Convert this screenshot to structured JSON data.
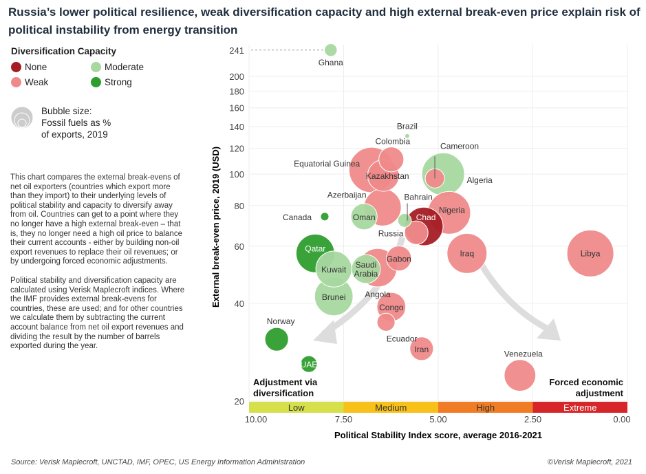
{
  "title": "Russia’s lower political resilience, weak diversification capacity and high external break-even price explain risk of political instability from energy transition",
  "legend": {
    "title": "Diversification Capacity",
    "items": [
      {
        "label": "None",
        "color": "#a51c24"
      },
      {
        "label": "Moderate",
        "color": "#a8d8a0"
      },
      {
        "label": "Weak",
        "color": "#ef8a8a"
      },
      {
        "label": "Strong",
        "color": "#2e9e2e"
      }
    ],
    "bubble_size_label": "Bubble size: Fossil fuels as % of exports, 2019"
  },
  "description": [
    "This chart compares the external break-evens of net oil exporters (countries which export more than they import) to their underlying levels of political stability and capacity to diversify away from oil. Countries can get to a point where they no longer have a high external break-even – that is, they no longer need a high oil price to balance their current accounts - either by building non-oil export revenues to replace their oil revenues; or by undergoing forced economic adjustments.",
    "Political stability and diversification capacity are calculated using Verisk Maplecroft indices. Where the IMF provides external break-evens for countries, these are used; and for other countries we calculate them by subtracting the current account balance from net oil export revenues and dividing the result by the number of barrels exported during the year."
  ],
  "source": "Source: Verisk Maplecroft, UNCTAD, IMF, OPEC, US Energy Information Administration",
  "copyright": "©Verisk Maplecroft, 2021",
  "chart_data": {
    "type": "scatter",
    "xlabel": "Political Stability Index score, average 2016-2021",
    "ylabel": "External break-even price, 2019 (USD)",
    "xlim": [
      10,
      0
    ],
    "x_reversed": true,
    "ylim": [
      20,
      241
    ],
    "y_scale": "log",
    "xticks": [
      "10.00",
      "7.50",
      "5.00",
      "2.50",
      "0.00"
    ],
    "yticks": [
      20,
      40,
      60,
      80,
      100,
      120,
      140,
      160,
      180,
      200,
      241
    ],
    "grid": true,
    "bands": [
      {
        "label": "Low",
        "from": 10,
        "to": 7.5,
        "color": "#d5e04a"
      },
      {
        "label": "Medium",
        "from": 7.5,
        "to": 5,
        "color": "#f7c11a"
      },
      {
        "label": "High",
        "from": 5,
        "to": 2.5,
        "color": "#f07c25"
      },
      {
        "label": "Extreme",
        "from": 2.5,
        "to": 0,
        "color": "#d7262a"
      }
    ],
    "annotations": [
      "Adjustment via diversification",
      "Forced economic adjustment"
    ],
    "categories_colors": {
      "None": "#a51c24",
      "Weak": "#ef8a8a",
      "Moderate": "#a8d8a0",
      "Strong": "#2e9e2e"
    },
    "points": [
      {
        "name": "Libya",
        "x": 0.98,
        "y": 57,
        "size": 95,
        "cat": "Weak"
      },
      {
        "name": "Equatorial Guinea",
        "x": 6.76,
        "y": 103,
        "size": 89,
        "cat": "Weak"
      },
      {
        "name": "Algeria",
        "x": 4.87,
        "y": 100,
        "size": 79,
        "cat": "Moderate"
      },
      {
        "name": "Nigeria",
        "x": 4.71,
        "y": 76,
        "size": 79,
        "cat": "Weak"
      },
      {
        "name": "Iraq",
        "x": 4.24,
        "y": 57,
        "size": 69,
        "cat": "Weak"
      },
      {
        "name": "Azerbaijan",
        "x": 6.47,
        "y": 79,
        "size": 60,
        "cat": "Weak"
      },
      {
        "name": "Angola",
        "x": 6.6,
        "y": 51.5,
        "size": 64,
        "cat": "Weak"
      },
      {
        "name": "Qatar",
        "x": 8.25,
        "y": 57,
        "size": 64,
        "cat": "Strong"
      },
      {
        "name": "Chad",
        "x": 5.38,
        "y": 69,
        "size": 64,
        "cat": "None"
      },
      {
        "name": "Kuwait",
        "x": 7.76,
        "y": 51,
        "size": 56,
        "cat": "Moderate"
      },
      {
        "name": "Brunei",
        "x": 7.76,
        "y": 42,
        "size": 64,
        "cat": "Moderate"
      },
      {
        "name": "Kazakhstan",
        "x": 6.45,
        "y": 99,
        "size": 43,
        "cat": "Weak"
      },
      {
        "name": "Venezuela",
        "x": 2.84,
        "y": 24,
        "size": 43,
        "cat": "Weak"
      },
      {
        "name": "Saudi Arabia",
        "x": 6.91,
        "y": 51,
        "size": 36,
        "cat": "Moderate"
      },
      {
        "name": "Congo",
        "x": 6.24,
        "y": 39,
        "size": 36,
        "cat": "Weak"
      },
      {
        "name": "Oman",
        "x": 6.96,
        "y": 74,
        "size": 30,
        "cat": "Moderate"
      },
      {
        "name": "Colombia",
        "x": 6.24,
        "y": 111,
        "size": 27,
        "cat": "Weak"
      },
      {
        "name": "Gabon",
        "x": 6.04,
        "y": 55,
        "size": 27,
        "cat": "Weak"
      },
      {
        "name": "Russia",
        "x": 5.58,
        "y": 66,
        "size": 24,
        "cat": "Weak"
      },
      {
        "name": "Iran",
        "x": 5.44,
        "y": 29,
        "size": 24,
        "cat": "Weak"
      },
      {
        "name": "Norway",
        "x": 9.27,
        "y": 31,
        "size": 24,
        "cat": "Strong"
      },
      {
        "name": "Cameroon",
        "x": 5.09,
        "y": 97,
        "size": 16,
        "cat": "Weak"
      },
      {
        "name": "Ecuador",
        "x": 6.38,
        "y": 35,
        "size": 14,
        "cat": "Weak"
      },
      {
        "name": "UAE",
        "x": 8.42,
        "y": 26,
        "size": 12,
        "cat": "Strong"
      },
      {
        "name": "Bahrain",
        "x": 5.89,
        "y": 72,
        "size": 8,
        "cat": "Moderate"
      },
      {
        "name": "Ghana",
        "x": 7.84,
        "y": 241,
        "size": 7,
        "cat": "Moderate"
      },
      {
        "name": "Canada",
        "x": 8.0,
        "y": 74,
        "size": 3,
        "cat": "Strong"
      },
      {
        "name": "Brazil",
        "x": 5.82,
        "y": 131,
        "size": 1,
        "cat": "Moderate"
      }
    ]
  }
}
